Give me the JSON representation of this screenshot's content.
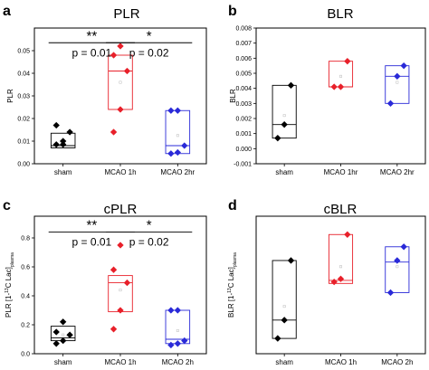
{
  "chart_data": [
    {
      "id": "a",
      "type": "box",
      "letter": "a",
      "title": "PLR",
      "ylabel": "PLR",
      "ylim": [
        0,
        0.06
      ],
      "yticks": [
        0,
        0.01,
        0.02,
        0.03,
        0.04,
        0.05
      ],
      "ytick_labels": [
        "0.00",
        "0.01",
        "0.02",
        "0.03",
        "0.04",
        "0.05"
      ],
      "categories": [
        "sham",
        "MCAO 1h",
        "MCAO 2hr"
      ],
      "colors": [
        "#000000",
        "#e8202a",
        "#2a2ad8"
      ],
      "boxes": [
        {
          "q1": 0.007,
          "median": 0.008,
          "q3": 0.0135,
          "mean": 0.009
        },
        {
          "q1": 0.024,
          "median": 0.041,
          "q3": 0.048,
          "mean": 0.036
        },
        {
          "q1": 0.0045,
          "median": 0.008,
          "q3": 0.0235,
          "mean": 0.0125
        }
      ],
      "points": [
        [
          0.0085,
          0.0085,
          0.014,
          0.017,
          0.01
        ],
        [
          0.014,
          0.024,
          0.041,
          0.048,
          0.052
        ],
        [
          0.0045,
          0.005,
          0.008,
          0.0235,
          0.0235
        ]
      ],
      "significance": [
        {
          "from": 0,
          "to": 1,
          "stars": "**",
          "p": "p = 0.01",
          "y": 0.0535
        },
        {
          "from": 1,
          "to": 2,
          "stars": "*",
          "p": "p = 0.02",
          "y": 0.0535
        }
      ]
    },
    {
      "id": "b",
      "type": "box",
      "letter": "b",
      "title": "BLR",
      "ylabel": "BLR",
      "ylim": [
        -0.001,
        0.008
      ],
      "yticks": [
        -0.001,
        0,
        0.001,
        0.002,
        0.003,
        0.004,
        0.005,
        0.006,
        0.007,
        0.008
      ],
      "ytick_labels": [
        "-0.001",
        "0.000",
        "0.001",
        "0.002",
        "0.003",
        "0.004",
        "0.005",
        "0.006",
        "0.007",
        "0.008"
      ],
      "categories": [
        "sham",
        "MCAO 1hr",
        "MCAO 2hr"
      ],
      "colors": [
        "#000000",
        "#e8202a",
        "#2a2ad8"
      ],
      "boxes": [
        {
          "q1": 0.0007,
          "median": 0.0016,
          "q3": 0.0042,
          "mean": 0.0022
        },
        {
          "q1": 0.0041,
          "median": 0.0041,
          "q3": 0.0058,
          "mean": 0.0048
        },
        {
          "q1": 0.003,
          "median": 0.0048,
          "q3": 0.0055,
          "mean": 0.0044
        }
      ],
      "points": [
        [
          0.0007,
          0.0016,
          0.0042
        ],
        [
          0.0041,
          0.0041,
          0.0058
        ],
        [
          0.003,
          0.0048,
          0.0055
        ]
      ],
      "significance": []
    },
    {
      "id": "c",
      "type": "box",
      "letter": "c",
      "title": "cPLR",
      "ylabel": "PLR [1-13C Lac]plasma",
      "ylabel_main": "PLR [1-",
      "ylabel_sup": "13",
      "ylabel_mid": "C Lac]",
      "ylabel_sub": "plasma",
      "ylim": [
        0,
        0.95
      ],
      "yticks": [
        0,
        0.2,
        0.4,
        0.6,
        0.8
      ],
      "ytick_labels": [
        "0.0",
        "0.2",
        "0.4",
        "0.6",
        "0.8"
      ],
      "categories": [
        "sham",
        "MCAO 1h",
        "MCAO 2h"
      ],
      "colors": [
        "#000000",
        "#e8202a",
        "#2a2ad8"
      ],
      "boxes": [
        {
          "q1": 0.09,
          "median": 0.11,
          "q3": 0.19,
          "mean": 0.13
        },
        {
          "q1": 0.29,
          "median": 0.49,
          "q3": 0.54,
          "mean": 0.44
        },
        {
          "q1": 0.07,
          "median": 0.1,
          "q3": 0.3,
          "mean": 0.16
        }
      ],
      "points": [
        [
          0.07,
          0.09,
          0.13,
          0.15,
          0.22
        ],
        [
          0.17,
          0.3,
          0.49,
          0.58,
          0.75
        ],
        [
          0.06,
          0.07,
          0.09,
          0.3,
          0.3
        ]
      ],
      "significance": [
        {
          "from": 0,
          "to": 1,
          "stars": "**",
          "p": "p = 0.01",
          "y": 0.84
        },
        {
          "from": 1,
          "to": 2,
          "stars": "*",
          "p": "p = 0.02",
          "y": 0.84
        }
      ]
    },
    {
      "id": "d",
      "type": "box",
      "letter": "d",
      "title": "cBLR",
      "ylabel": "BLR [1-13C Lac]plasma",
      "ylabel_main": "BLR [1-",
      "ylabel_sup": "13",
      "ylabel_mid": "C Lac]",
      "ylabel_sub": "plasma",
      "ylim": [
        0,
        0.09
      ],
      "yticks": [],
      "ytick_labels": [],
      "categories": [
        "sham",
        "MCAO 1h",
        "MCAO 2h"
      ],
      "colors": [
        "#000000",
        "#e8202a",
        "#2a2ad8"
      ],
      "boxes": [
        {
          "q1": 0.01,
          "median": 0.022,
          "q3": 0.061,
          "mean": 0.031
        },
        {
          "q1": 0.046,
          "median": 0.048,
          "q3": 0.078,
          "mean": 0.057
        },
        {
          "q1": 0.04,
          "median": 0.06,
          "q3": 0.07,
          "mean": 0.057
        }
      ],
      "points": [
        [
          0.01,
          0.022,
          0.061
        ],
        [
          0.047,
          0.049,
          0.078
        ],
        [
          0.04,
          0.061,
          0.07
        ]
      ],
      "significance": []
    }
  ]
}
